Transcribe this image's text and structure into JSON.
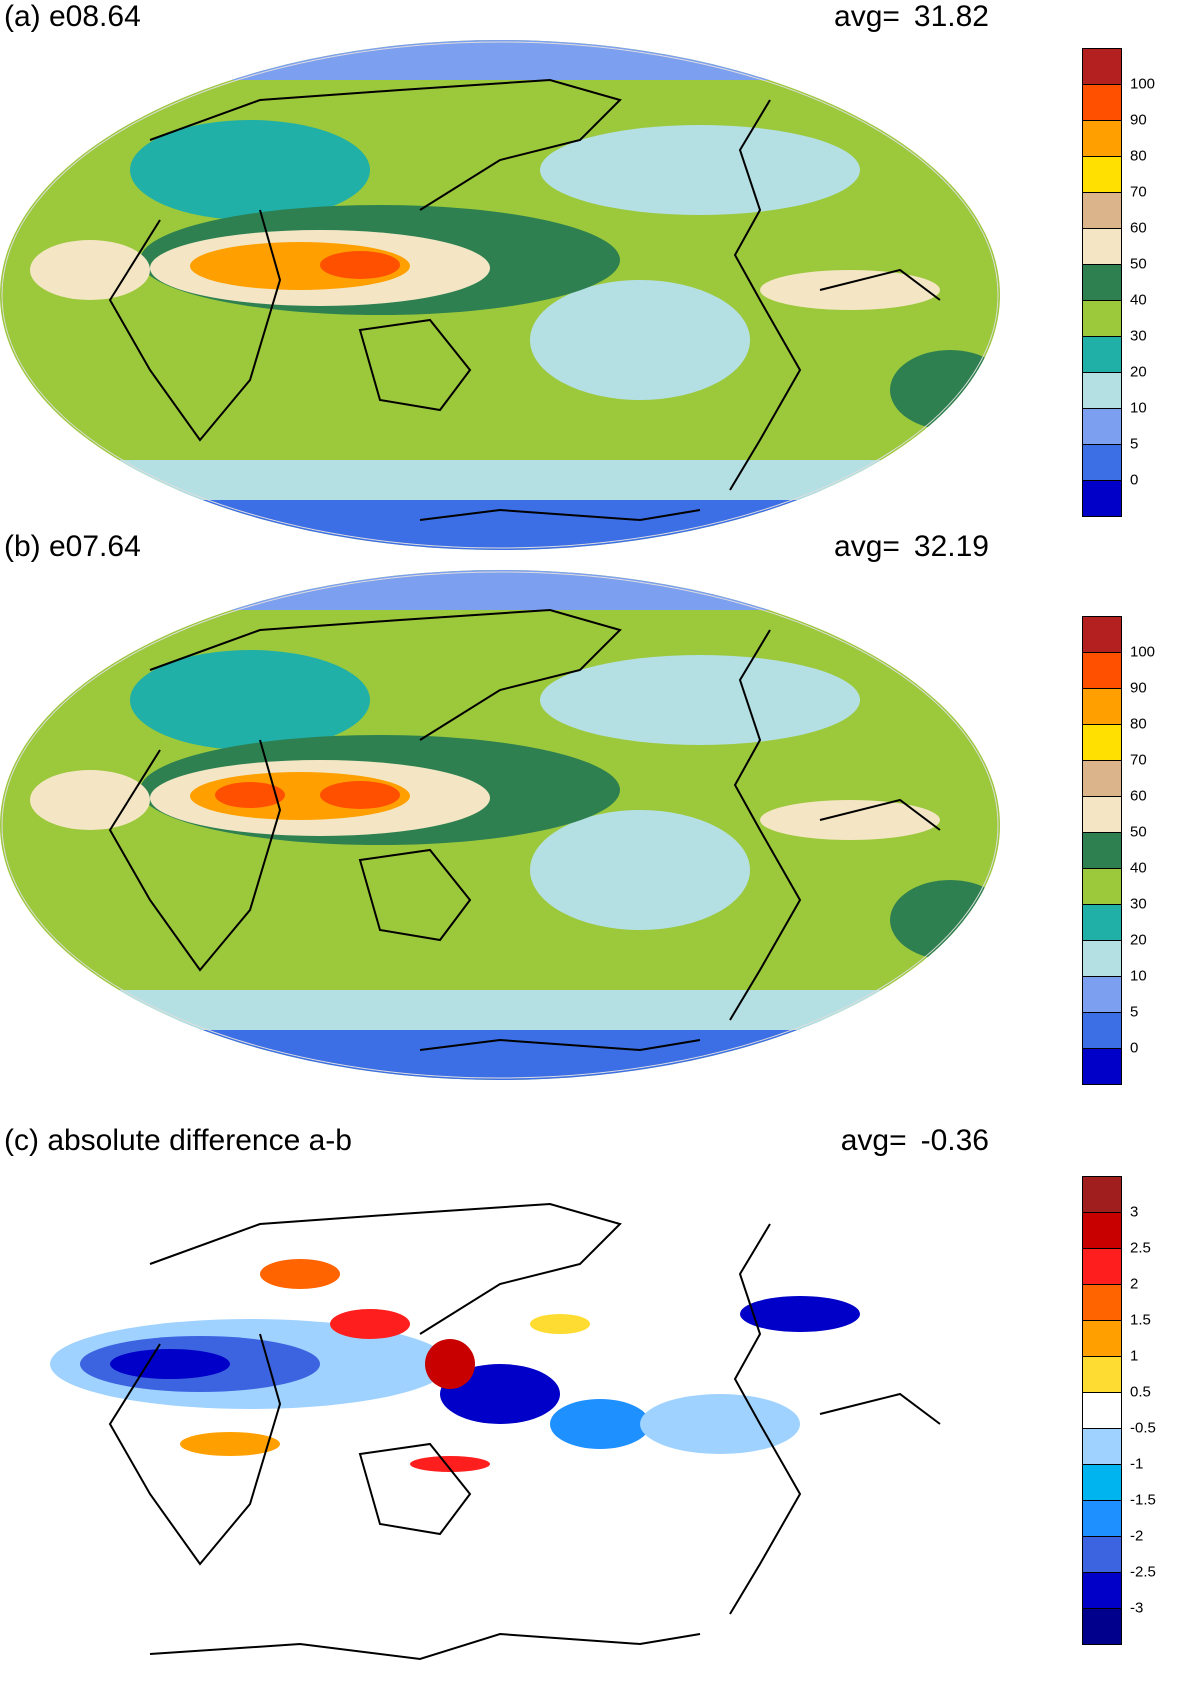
{
  "panels": [
    {
      "id": "a",
      "title": "(a) e08.64",
      "avg_label": "avg=",
      "avg_value": "31.82",
      "colorbar": {
        "colors": [
          "#0000c8",
          "#3c6ee6",
          "#7c9ff0",
          "#b4e0e4",
          "#20b0a8",
          "#9cc83c",
          "#2e8050",
          "#f4e6c4",
          "#dcb48c",
          "#ffe000",
          "#ffa000",
          "#ff5000",
          "#b42020"
        ],
        "ticks": [
          "0",
          "5",
          "10",
          "20",
          "30",
          "40",
          "50",
          "60",
          "70",
          "80",
          "90",
          "100"
        ]
      }
    },
    {
      "id": "b",
      "title": "(b) e07.64",
      "avg_label": "avg=",
      "avg_value": "32.19",
      "colorbar": {
        "colors": [
          "#0000c8",
          "#3c6ee6",
          "#7c9ff0",
          "#b4e0e4",
          "#20b0a8",
          "#9cc83c",
          "#2e8050",
          "#f4e6c4",
          "#dcb48c",
          "#ffe000",
          "#ffa000",
          "#ff5000",
          "#b42020"
        ],
        "ticks": [
          "0",
          "5",
          "10",
          "20",
          "30",
          "40",
          "50",
          "60",
          "70",
          "80",
          "90",
          "100"
        ]
      }
    },
    {
      "id": "c",
      "title": "(c) absolute difference a-b",
      "avg_label": "avg=",
      "avg_value": "-0.36",
      "colorbar": {
        "colors": [
          "#00008c",
          "#0000c8",
          "#3c64e0",
          "#1e90ff",
          "#00b4f0",
          "#a0d2ff",
          "#ffffff",
          "#ffdc32",
          "#ffa000",
          "#ff6400",
          "#ff1e1e",
          "#c80000",
          "#a01e1e"
        ],
        "ticks": [
          "-3",
          "-2.5",
          "-2",
          "-1.5",
          "-1",
          "-0.5",
          "0.5",
          "1",
          "1.5",
          "2",
          "2.5",
          "3"
        ]
      }
    }
  ]
}
